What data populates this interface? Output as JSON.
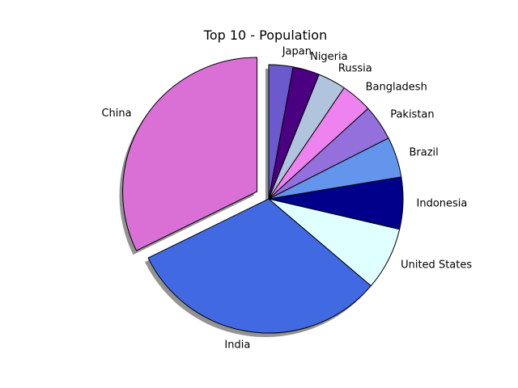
{
  "chart_data": {
    "type": "pie",
    "title": "Top 10 - Population",
    "start_angle_deg": 90,
    "direction": "counterclockwise",
    "shadow": true,
    "exploded": [
      "China"
    ],
    "slices": [
      {
        "label": "China",
        "value": 1.398,
        "color": "#da70d6"
      },
      {
        "label": "India",
        "value": 1.366,
        "color": "#4169e1"
      },
      {
        "label": "United States",
        "value": 0.329,
        "color": "#e0ffff"
      },
      {
        "label": "Indonesia",
        "value": 0.271,
        "color": "#00008b"
      },
      {
        "label": "Brazil",
        "value": 0.211,
        "color": "#6495ed"
      },
      {
        "label": "Pakistan",
        "value": 0.185,
        "color": "#9370db"
      },
      {
        "label": "Bangladesh",
        "value": 0.163,
        "color": "#ee82ee"
      },
      {
        "label": "Russia",
        "value": 0.146,
        "color": "#b0c4de"
      },
      {
        "label": "Nigeria",
        "value": 0.139,
        "color": "#4b0082"
      },
      {
        "label": "Japan",
        "value": 0.126,
        "color": "#6a5acd"
      }
    ]
  }
}
